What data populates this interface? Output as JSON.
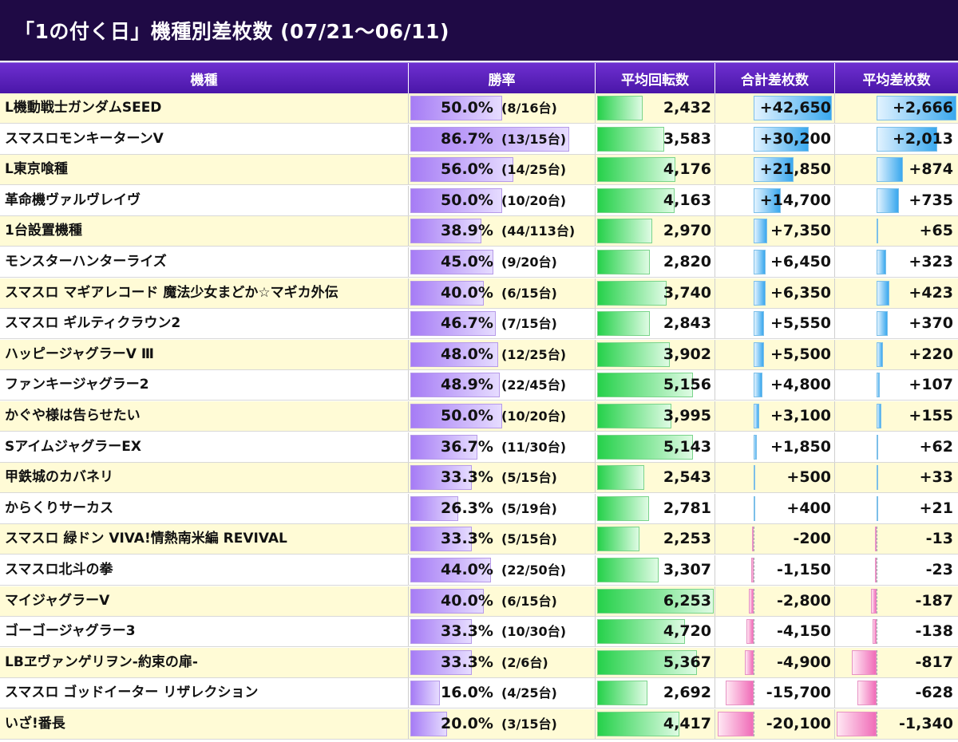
{
  "title": "「1の付く日」機種別差枚数 (07/21〜06/11)",
  "headers": [
    "機種",
    "勝率",
    "平均回転数",
    "合計差枚数",
    "平均差枚数"
  ],
  "rows": [
    {
      "name": "L機動戦士ガンダムSEED",
      "rate": "50.0%",
      "count": "(8/16台)",
      "rate_value": 50.0,
      "spins": "2,432",
      "spins_value": 2432,
      "total": "+42,650",
      "total_value": 42650,
      "avg": "+2,666",
      "avg_value": 2666
    },
    {
      "name": "スマスロモンキーターンV",
      "rate": "86.7%",
      "count": "(13/15台)",
      "rate_value": 86.7,
      "spins": "3,583",
      "spins_value": 3583,
      "total": "+30,200",
      "total_value": 30200,
      "avg": "+2,013",
      "avg_value": 2013
    },
    {
      "name": "L東京喰種",
      "rate": "56.0%",
      "count": "(14/25台)",
      "rate_value": 56.0,
      "spins": "4,176",
      "spins_value": 4176,
      "total": "+21,850",
      "total_value": 21850,
      "avg": "+874",
      "avg_value": 874
    },
    {
      "name": "革命機ヴァルヴレイヴ",
      "rate": "50.0%",
      "count": "(10/20台)",
      "rate_value": 50.0,
      "spins": "4,163",
      "spins_value": 4163,
      "total": "+14,700",
      "total_value": 14700,
      "avg": "+735",
      "avg_value": 735
    },
    {
      "name": "1台設置機種",
      "rate": "38.9%",
      "count": "(44/113台)",
      "rate_value": 38.9,
      "spins": "2,970",
      "spins_value": 2970,
      "total": "+7,350",
      "total_value": 7350,
      "avg": "+65",
      "avg_value": 65
    },
    {
      "name": "モンスターハンターライズ",
      "rate": "45.0%",
      "count": "(9/20台)",
      "rate_value": 45.0,
      "spins": "2,820",
      "spins_value": 2820,
      "total": "+6,450",
      "total_value": 6450,
      "avg": "+323",
      "avg_value": 323
    },
    {
      "name": "スマスロ マギアレコード 魔法少女まどか☆マギカ外伝",
      "rate": "40.0%",
      "count": "(6/15台)",
      "rate_value": 40.0,
      "spins": "3,740",
      "spins_value": 3740,
      "total": "+6,350",
      "total_value": 6350,
      "avg": "+423",
      "avg_value": 423
    },
    {
      "name": "スマスロ ギルティクラウン2",
      "rate": "46.7%",
      "count": "(7/15台)",
      "rate_value": 46.7,
      "spins": "2,843",
      "spins_value": 2843,
      "total": "+5,550",
      "total_value": 5550,
      "avg": "+370",
      "avg_value": 370
    },
    {
      "name": "ハッピージャグラーV Ⅲ",
      "rate": "48.0%",
      "count": "(12/25台)",
      "rate_value": 48.0,
      "spins": "3,902",
      "spins_value": 3902,
      "total": "+5,500",
      "total_value": 5500,
      "avg": "+220",
      "avg_value": 220
    },
    {
      "name": "ファンキージャグラー2",
      "rate": "48.9%",
      "count": "(22/45台)",
      "rate_value": 48.9,
      "spins": "5,156",
      "spins_value": 5156,
      "total": "+4,800",
      "total_value": 4800,
      "avg": "+107",
      "avg_value": 107
    },
    {
      "name": "かぐや様は告らせたい",
      "rate": "50.0%",
      "count": "(10/20台)",
      "rate_value": 50.0,
      "spins": "3,995",
      "spins_value": 3995,
      "total": "+3,100",
      "total_value": 3100,
      "avg": "+155",
      "avg_value": 155
    },
    {
      "name": "SアイムジャグラーEX",
      "rate": "36.7%",
      "count": "(11/30台)",
      "rate_value": 36.7,
      "spins": "5,143",
      "spins_value": 5143,
      "total": "+1,850",
      "total_value": 1850,
      "avg": "+62",
      "avg_value": 62
    },
    {
      "name": "甲鉄城のカバネリ",
      "rate": "33.3%",
      "count": "(5/15台)",
      "rate_value": 33.3,
      "spins": "2,543",
      "spins_value": 2543,
      "total": "+500",
      "total_value": 500,
      "avg": "+33",
      "avg_value": 33
    },
    {
      "name": "からくりサーカス",
      "rate": "26.3%",
      "count": "(5/19台)",
      "rate_value": 26.3,
      "spins": "2,781",
      "spins_value": 2781,
      "total": "+400",
      "total_value": 400,
      "avg": "+21",
      "avg_value": 21
    },
    {
      "name": "スマスロ 緑ドン VIVA!情熱南米編 REVIVAL",
      "rate": "33.3%",
      "count": "(5/15台)",
      "rate_value": 33.3,
      "spins": "2,253",
      "spins_value": 2253,
      "total": "-200",
      "total_value": -200,
      "avg": "-13",
      "avg_value": -13
    },
    {
      "name": "スマスロ北斗の拳",
      "rate": "44.0%",
      "count": "(22/50台)",
      "rate_value": 44.0,
      "spins": "3,307",
      "spins_value": 3307,
      "total": "-1,150",
      "total_value": -1150,
      "avg": "-23",
      "avg_value": -23
    },
    {
      "name": "マイジャグラーV",
      "rate": "40.0%",
      "count": "(6/15台)",
      "rate_value": 40.0,
      "spins": "6,253",
      "spins_value": 6253,
      "total": "-2,800",
      "total_value": -2800,
      "avg": "-187",
      "avg_value": -187
    },
    {
      "name": "ゴーゴージャグラー3",
      "rate": "33.3%",
      "count": "(10/30台)",
      "rate_value": 33.3,
      "spins": "4,720",
      "spins_value": 4720,
      "total": "-4,150",
      "total_value": -4150,
      "avg": "-138",
      "avg_value": -138
    },
    {
      "name": "LBヱヴァンゲリヲン-約束の扉-",
      "rate": "33.3%",
      "count": "(2/6台)",
      "rate_value": 33.3,
      "spins": "5,367",
      "spins_value": 5367,
      "total": "-4,900",
      "total_value": -4900,
      "avg": "-817",
      "avg_value": -817
    },
    {
      "name": "スマスロ ゴッドイーター リザレクション",
      "rate": "16.0%",
      "count": "(4/25台)",
      "rate_value": 16.0,
      "spins": "2,692",
      "spins_value": 2692,
      "total": "-15,700",
      "total_value": -15700,
      "avg": "-628",
      "avg_value": -628
    },
    {
      "name": "いざ!番長",
      "rate": "20.0%",
      "count": "(3/15台)",
      "rate_value": 20.0,
      "spins": "4,417",
      "spins_value": 4417,
      "total": "-20,100",
      "total_value": -20100,
      "avg": "-1,340",
      "avg_value": -1340
    }
  ]
}
